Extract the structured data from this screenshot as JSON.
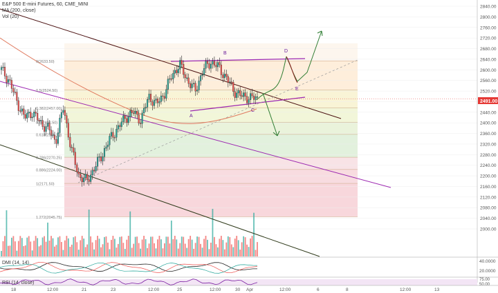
{
  "header": {
    "title": "E&P 500 E-mini Futures, 60, CME_MINI",
    "ma_label": "MA (200, close)",
    "vol_label": "Vol (20)"
  },
  "price_axis": {
    "ticks": [
      "2840.00",
      "2800.00",
      "2760.00",
      "2720.00",
      "2680.00",
      "2640.00",
      "2600.00",
      "2560.00",
      "2520.00",
      "2480.00",
      "2440.00",
      "2400.00",
      "2360.00",
      "2320.00",
      "2280.00",
      "2240.00",
      "2200.00",
      "2160.00",
      "2120.00",
      "2080.00",
      "2040.00",
      "2000.00"
    ],
    "current": "2491.00"
  },
  "time_axis": {
    "ticks": [
      "18",
      "12:00",
      "21",
      "23",
      "12:00",
      "25",
      "12:00",
      "30",
      "Apr",
      "12:00",
      "6",
      "8",
      "12:00",
      "13"
    ]
  },
  "fib_labels": [
    "0(2633.50)",
    "0.5(2524.50)",
    "0.382(2457.00)",
    "0.5(2402.50)",
    "0.618(2356.50)",
    "0.786(2270.25)",
    "0.886(2224.00)",
    "1(2171.50)",
    "1.272(2045.75)"
  ],
  "pattern_labels": {
    "A": "A",
    "B": "B",
    "C": "C",
    "D": "D",
    "E": "E"
  },
  "dmi": {
    "label": "DMI (14, 14)",
    "ticks": [
      "40.0000",
      "20.0000"
    ]
  },
  "rsi": {
    "label": "RSI (14, close)",
    "ticks": [
      "75.00",
      "50.00",
      "25.00"
    ]
  },
  "colors": {
    "up": "#26a69a",
    "down": "#ef5350",
    "ma": "#e07a5f",
    "channel_purple": "#9c27b0",
    "trend_dark": "#4a1010",
    "fib_green": "#c8e6c9",
    "fib_red": "#f8bbd0",
    "fib_orange": "#ffe0b2",
    "arrow": "#2e7d32",
    "price_tag": "#e53935"
  },
  "chart_data": {
    "type": "line",
    "instrument": "E&P 500 E-mini Futures",
    "interval": "60",
    "x": [
      "18",
      "12:00",
      "21",
      "23",
      "12:00",
      "25",
      "12:00",
      "30",
      "Apr"
    ],
    "price_path": [
      2600,
      2560,
      2480,
      2420,
      2440,
      2400,
      2380,
      2330,
      2460,
      2300,
      2200,
      2180,
      2230,
      2280,
      2340,
      2380,
      2420,
      2440,
      2410,
      2500,
      2470,
      2510,
      2580,
      2620,
      2560,
      2520,
      2600,
      2630,
      2610,
      2570,
      2520,
      2500,
      2496,
      2491
    ],
    "ylim": [
      2000,
      2850
    ],
    "current_price": 2491.0,
    "fib_levels": [
      {
        "ratio": "0",
        "price": 2633.5
      },
      {
        "ratio": "0.5",
        "price": 2524.5
      },
      {
        "ratio": "0.382",
        "price": 2457.0
      },
      {
        "ratio": "0.5",
        "price": 2402.5
      },
      {
        "ratio": "0.618",
        "price": 2356.5
      },
      {
        "ratio": "0.786",
        "price": 2270.25
      },
      {
        "ratio": "0.886",
        "price": 2224.0
      },
      {
        "ratio": "1",
        "price": 2171.5
      },
      {
        "ratio": "1.272",
        "price": 2045.75
      }
    ],
    "dmi_ylim": [
      10,
      45
    ],
    "rsi_ylim": [
      20,
      80
    ]
  }
}
